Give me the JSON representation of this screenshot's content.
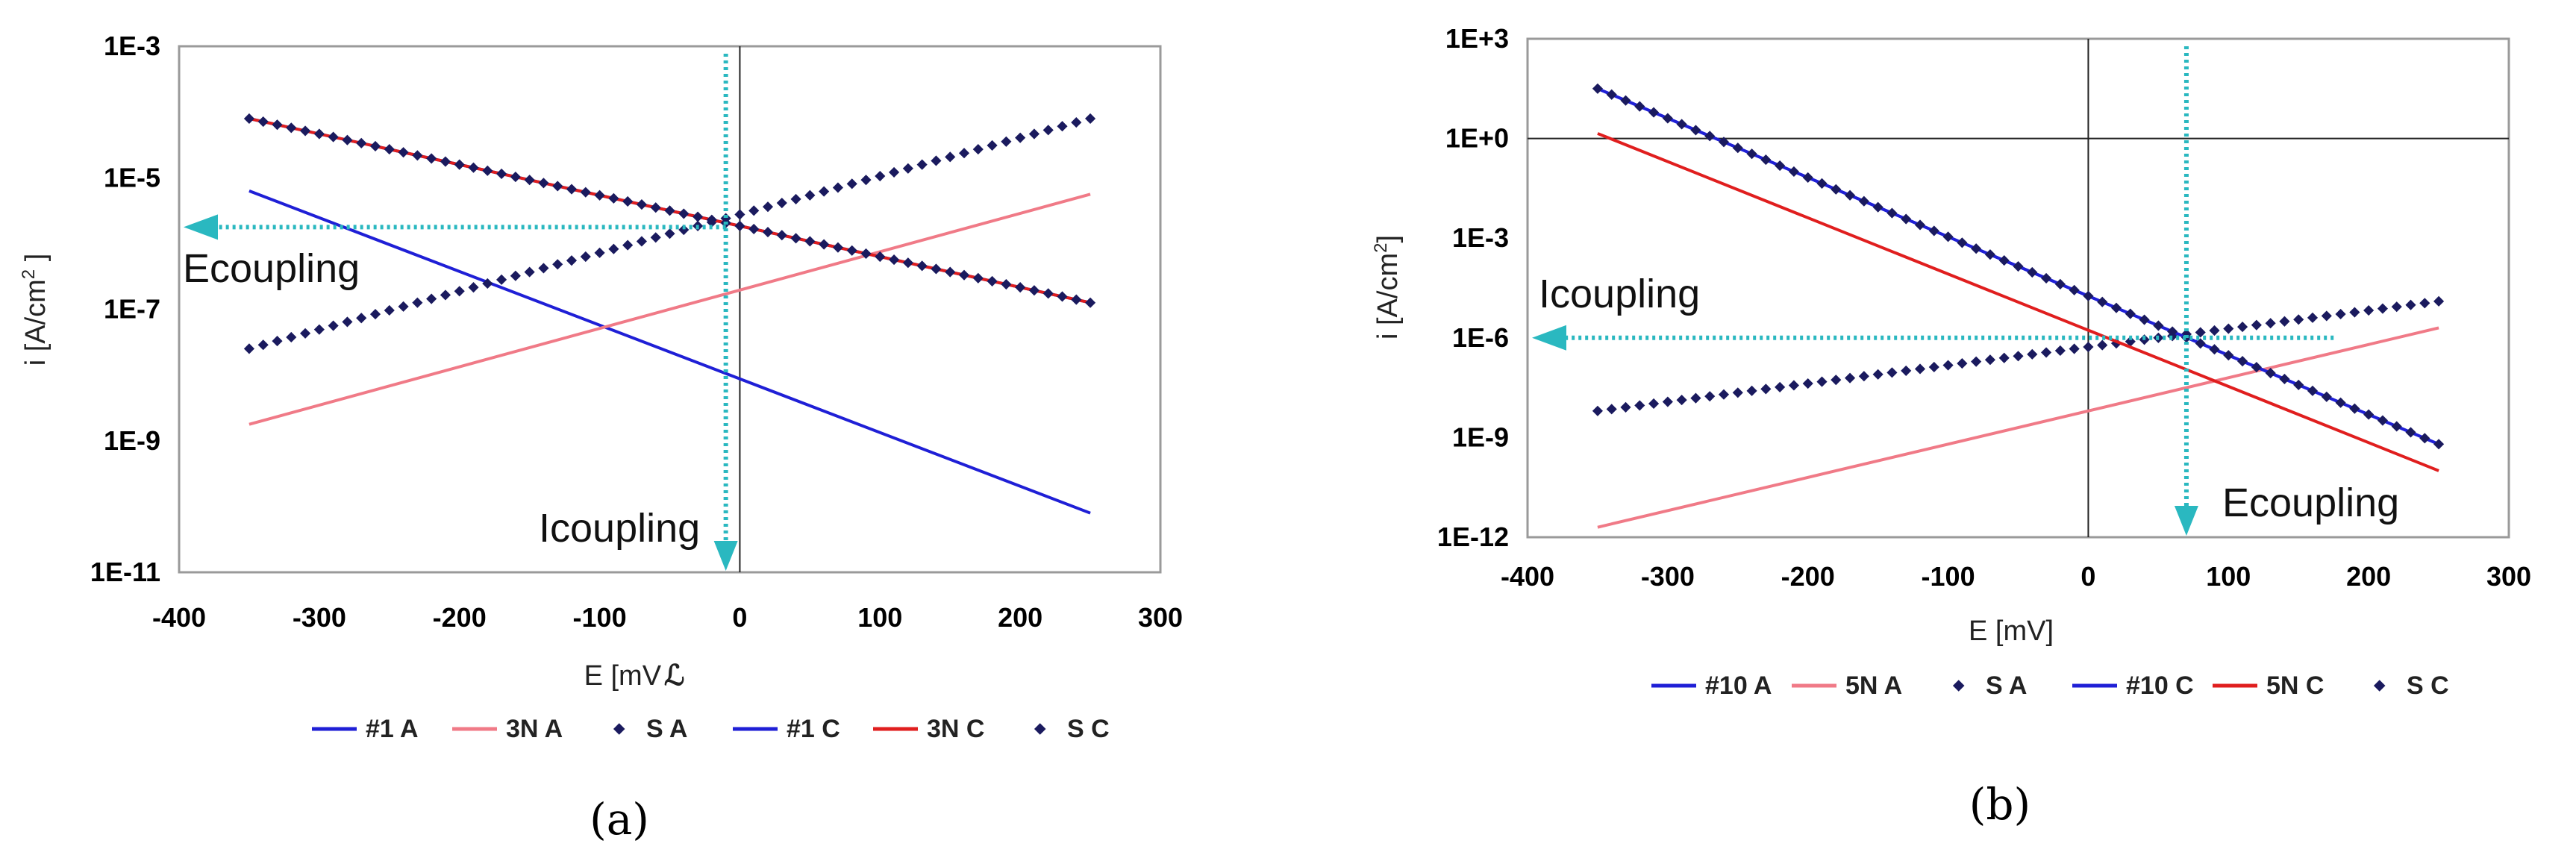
{
  "chart_data": [
    {
      "type": "line",
      "panel_label": "(a)",
      "xlabel": "E [mV",
      "xlabel_glyph": "ℒ",
      "ylabel": "i [A/cm",
      "ylabel_sup": "2",
      "ylabel_end": " ]",
      "yscale": "log",
      "xlim": [
        -400,
        300
      ],
      "ylim_exp": [
        -11,
        -3
      ],
      "xticks": [
        -400,
        -300,
        -200,
        -100,
        0,
        100,
        200,
        300
      ],
      "xtick_labels": [
        "-400",
        "-300",
        "-200",
        "-100",
        "0",
        "100",
        "200",
        "300"
      ],
      "yticks_exp": [
        -11,
        -9,
        -7,
        -5,
        -3
      ],
      "ytick_labels": [
        "1E-11",
        "1E-9",
        "1E-7",
        "1E-5",
        "1E-3"
      ],
      "series": [
        {
          "name": "#1  A",
          "color": "#1f1fd6",
          "style": "line",
          "x": [
            -350,
            250
          ],
          "log10_y": [
            -5.2,
            -10.1
          ]
        },
        {
          "name": "3N A",
          "color": "#f07a87",
          "style": "line",
          "x": [
            -350,
            250
          ],
          "log10_y": [
            -8.75,
            -5.25
          ]
        },
        {
          "name": "S A",
          "color": "#1a1a5e",
          "style": "markers",
          "x": [
            -350,
            250
          ],
          "log10_y": [
            -7.6,
            -4.1
          ]
        },
        {
          "name": "#1 C",
          "color": "#1f1fd6",
          "style": "line",
          "x": [
            -350,
            250
          ],
          "log10_y": [
            -4.1,
            -6.9
          ]
        },
        {
          "name": "3N C",
          "color": "#e01e1e",
          "style": "line",
          "x": [
            -350,
            250
          ],
          "log10_y": [
            -4.1,
            -6.9
          ]
        },
        {
          "name": "S C",
          "color": "#1a1a5e",
          "style": "markers",
          "x": [
            -350,
            250
          ],
          "log10_y": [
            -4.1,
            -6.9
          ]
        }
      ],
      "legend_labels": [
        "#1  A",
        "3N A",
        "S A",
        "#1 C",
        "3N C",
        "S C"
      ],
      "annotations": {
        "horizontal_label": "Ecoupling",
        "vertical_label": "Icoupling",
        "vertical_arrow_x": -10,
        "horizontal_arrow_log10_y": -5.75,
        "horizontal_arrow_x_start": -10,
        "color": "#2ab8c0"
      }
    },
    {
      "type": "line",
      "panel_label": "(b)",
      "xlabel": "E [mV]",
      "ylabel": "i [A/cm",
      "ylabel_sup": "2",
      "ylabel_end": "]",
      "yscale": "log",
      "xlim": [
        -400,
        300
      ],
      "ylim_exp": [
        -12,
        3
      ],
      "xticks": [
        -400,
        -300,
        -200,
        -100,
        0,
        100,
        200,
        300
      ],
      "xtick_labels": [
        "-400",
        "-300",
        "-200",
        "-100",
        "0",
        "100",
        "200",
        "300"
      ],
      "yticks_exp": [
        -12,
        -9,
        -6,
        -3,
        0,
        3
      ],
      "ytick_labels": [
        "1E-12",
        "1E-9",
        "1E-6",
        "1E-3",
        "1E+0",
        "1E+3"
      ],
      "series": [
        {
          "name": "#10 A",
          "color": "#1f1fd6",
          "style": "line",
          "x": [
            -350,
            250
          ],
          "log10_y": [
            1.5,
            -9.2
          ]
        },
        {
          "name": "5N A",
          "color": "#f07a87",
          "style": "line",
          "x": [
            -350,
            250
          ],
          "log10_y": [
            -11.7,
            -5.7
          ]
        },
        {
          "name": "S A",
          "color": "#1a1a5e",
          "style": "markers",
          "x": [
            -350,
            250
          ],
          "log10_y": [
            -8.2,
            -4.9
          ]
        },
        {
          "name": "#10 C",
          "color": "#1f1fd6",
          "style": "line",
          "x": [
            -350,
            250
          ],
          "log10_y": [
            1.5,
            -9.2
          ]
        },
        {
          "name": "5N C",
          "color": "#e01e1e",
          "style": "line",
          "x": [
            -350,
            250
          ],
          "log10_y": [
            0.15,
            -10.0
          ]
        },
        {
          "name": "S C",
          "color": "#1a1a5e",
          "style": "markers",
          "x": [
            -350,
            250
          ],
          "log10_y": [
            1.5,
            -9.2
          ]
        }
      ],
      "legend_labels": [
        "#10 A",
        "5N A",
        "S A",
        "#10 C",
        "5N C",
        "S C"
      ],
      "annotations": {
        "horizontal_label": "Icoupling",
        "vertical_label": "Ecoupling",
        "vertical_arrow_x": 70,
        "horizontal_arrow_log10_y": -6.0,
        "horizontal_arrow_x_start": 175,
        "color": "#2ab8c0"
      }
    }
  ]
}
